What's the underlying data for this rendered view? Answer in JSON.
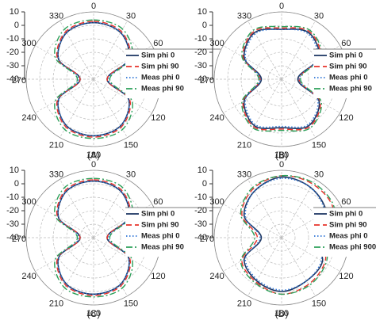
{
  "chart_data": [
    {
      "type": "polar",
      "caption": "(A)",
      "rlim": [
        -40,
        10
      ],
      "r_ticks": [
        10,
        0,
        -10,
        -20,
        -30,
        -40
      ],
      "angle_ticks": [
        0,
        30,
        60,
        120,
        150,
        180,
        210,
        240,
        270,
        300,
        330
      ],
      "theta": [
        0,
        30,
        60,
        90,
        120,
        150,
        180,
        210,
        240,
        270,
        300,
        330
      ],
      "series": [
        {
          "name": "Sim phi 0",
          "color": "#1f3864",
          "dash": "solid",
          "values": [
            2,
            0,
            -10,
            -30,
            -10,
            0,
            2,
            0,
            -10,
            -30,
            -10,
            0
          ]
        },
        {
          "name": "Sim phi 90",
          "color": "#e8322a",
          "dash": "dashed",
          "values": [
            3,
            1,
            -9,
            -30,
            -9,
            1,
            3,
            1,
            -9,
            -30,
            -9,
            1
          ]
        },
        {
          "name": "Meas phi 0",
          "color": "#2e75d6",
          "dash": "dotted",
          "values": [
            2,
            0,
            -10,
            -29,
            -10,
            0,
            2,
            0,
            -10,
            -29,
            -10,
            0
          ]
        },
        {
          "name": "Meas phi 90",
          "color": "#2ca05a",
          "dash": "dashdot",
          "values": [
            4,
            3,
            -7,
            -28,
            -7,
            3,
            4,
            3,
            -7,
            -28,
            -7,
            3
          ]
        }
      ]
    },
    {
      "type": "polar",
      "caption": "(B)",
      "rlim": [
        -40,
        10
      ],
      "r_ticks": [
        10,
        0,
        -10,
        -20,
        -30,
        -40
      ],
      "angle_ticks": [
        0,
        30,
        60,
        120,
        150,
        180,
        210,
        240,
        270,
        300,
        330
      ],
      "theta": [
        0,
        30,
        60,
        90,
        120,
        150,
        180,
        210,
        240,
        270,
        300,
        330
      ],
      "series": [
        {
          "name": "Sim phi 0",
          "color": "#1f3864",
          "dash": "solid",
          "values": [
            -3,
            0,
            -8,
            -28,
            -8,
            0,
            -4,
            0,
            -8,
            -25,
            -8,
            0
          ]
        },
        {
          "name": "Sim phi 90",
          "color": "#e8322a",
          "dash": "dashed",
          "values": [
            -2,
            1,
            -7,
            -27,
            -7,
            1,
            -3,
            1,
            -7,
            -24,
            -7,
            1
          ]
        },
        {
          "name": "Meas phi 0",
          "color": "#2e75d6",
          "dash": "dotted",
          "values": [
            -3,
            -1,
            -9,
            -27,
            -9,
            -1,
            -5,
            -1,
            -9,
            -24,
            -9,
            -1
          ]
        },
        {
          "name": "Meas phi 90",
          "color": "#2ca05a",
          "dash": "dashdot",
          "values": [
            -1,
            2,
            -6,
            -26,
            -6,
            2,
            -2,
            2,
            -6,
            -23,
            -6,
            2
          ]
        }
      ]
    },
    {
      "type": "polar",
      "caption": "(C)",
      "rlim": [
        -40,
        10
      ],
      "r_ticks": [
        10,
        0,
        -10,
        -20,
        -30,
        -40
      ],
      "angle_ticks": [
        0,
        30,
        60,
        120,
        150,
        180,
        210,
        240,
        270,
        300,
        330
      ],
      "theta": [
        0,
        30,
        60,
        90,
        120,
        150,
        180,
        210,
        240,
        270,
        300,
        330
      ],
      "series": [
        {
          "name": "Sim phi 0",
          "color": "#1f3864",
          "dash": "solid",
          "values": [
            2,
            0,
            -10,
            -30,
            -10,
            0,
            2,
            0,
            -10,
            -30,
            -10,
            0
          ]
        },
        {
          "name": "Sim phi 90",
          "color": "#e8322a",
          "dash": "dashed",
          "values": [
            3,
            1,
            -9,
            -30,
            -9,
            1,
            3,
            1,
            -9,
            -30,
            -9,
            1
          ]
        },
        {
          "name": "Meas phi 0",
          "color": "#2e75d6",
          "dash": "dotted",
          "values": [
            2,
            0,
            -10,
            -29,
            -10,
            0,
            2,
            0,
            -10,
            -29,
            -10,
            0
          ]
        },
        {
          "name": "Meas phi 90",
          "color": "#2ca05a",
          "dash": "dashdot",
          "values": [
            4,
            3,
            -7,
            -28,
            -7,
            3,
            4,
            3,
            -7,
            -28,
            -7,
            3
          ]
        }
      ]
    },
    {
      "type": "polar",
      "caption": "(D)",
      "rlim": [
        -40,
        10
      ],
      "r_ticks": [
        10,
        0,
        -10,
        -20,
        -30,
        -40
      ],
      "angle_ticks": [
        0,
        30,
        60,
        120,
        150,
        180,
        210,
        240,
        270,
        300,
        330
      ],
      "theta": [
        0,
        30,
        60,
        90,
        120,
        150,
        180,
        210,
        240,
        270,
        300,
        330
      ],
      "series": [
        {
          "name": "Sim phi 0",
          "color": "#1f3864",
          "dash": "solid",
          "values": [
            5,
            3,
            -2,
            -15,
            -5,
            -3,
            0,
            -3,
            -8,
            -25,
            -8,
            0
          ]
        },
        {
          "name": "Sim phi 90",
          "color": "#e8322a",
          "dash": "dashed",
          "values": [
            6,
            6,
            4,
            -8,
            -3,
            0,
            2,
            -2,
            -6,
            -22,
            -6,
            2
          ]
        },
        {
          "name": "Meas phi 0",
          "color": "#2e75d6",
          "dash": "dotted",
          "values": [
            4,
            3,
            -3,
            -14,
            -6,
            -3,
            -1,
            -4,
            -9,
            -24,
            -9,
            0
          ]
        },
        {
          "name": "Meas phi 900",
          "color": "#2ca05a",
          "dash": "dashdot",
          "values": [
            6,
            7,
            5,
            -6,
            -2,
            1,
            2,
            -1,
            -5,
            -20,
            -5,
            3
          ]
        }
      ]
    }
  ]
}
